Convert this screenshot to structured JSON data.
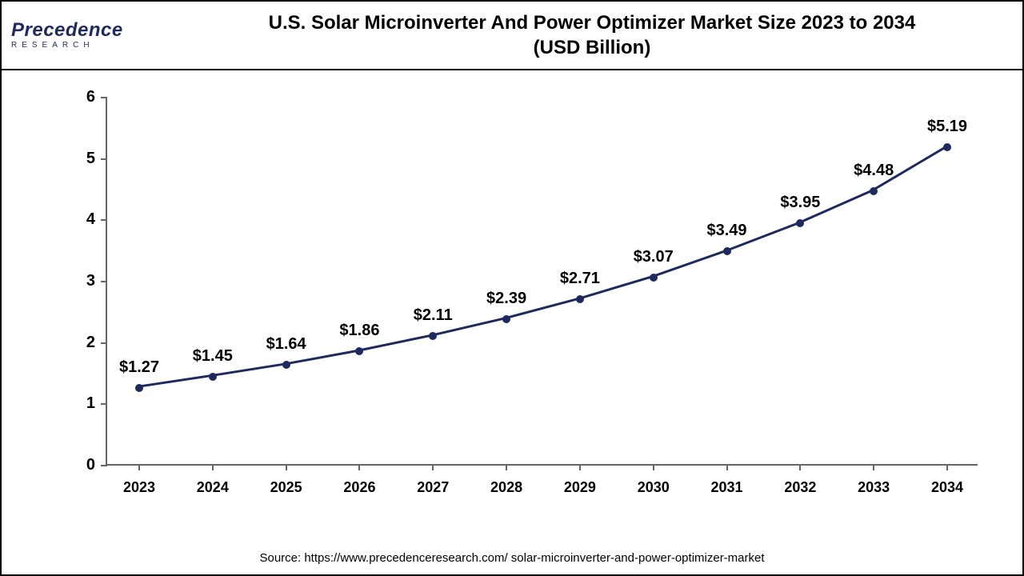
{
  "logo": {
    "main": "Precedence",
    "sub": "RESEARCH"
  },
  "title_line1": "U.S. Solar Microinverter And Power Optimizer Market Size 2023 to 2034",
  "title_line2": "(USD Billion)",
  "chart": {
    "type": "line",
    "years": [
      "2023",
      "2024",
      "2025",
      "2026",
      "2027",
      "2028",
      "2029",
      "2030",
      "2031",
      "2032",
      "2033",
      "2034"
    ],
    "values": [
      1.27,
      1.45,
      1.64,
      1.86,
      2.11,
      2.39,
      2.71,
      3.07,
      3.49,
      3.95,
      4.48,
      5.19
    ],
    "labels": [
      "$1.27",
      "$1.45",
      "$1.64",
      "$1.86",
      "$2.11",
      "$2.39",
      "$2.71",
      "$3.07",
      "$3.49",
      "$3.95",
      "$4.48",
      "$5.19"
    ],
    "ylim": [
      0,
      6
    ],
    "ytick_step": 1,
    "line_color": "#1e2a5e",
    "line_width": 3,
    "marker_color": "#1e2a5e",
    "marker_size": 10,
    "background_color": "#ffffff",
    "axis_color": "#666666",
    "label_fontsize": 20,
    "tick_fontsize": 18
  },
  "source": "Source: https://www.precedenceresearch.com/ solar-microinverter-and-power-optimizer-market"
}
